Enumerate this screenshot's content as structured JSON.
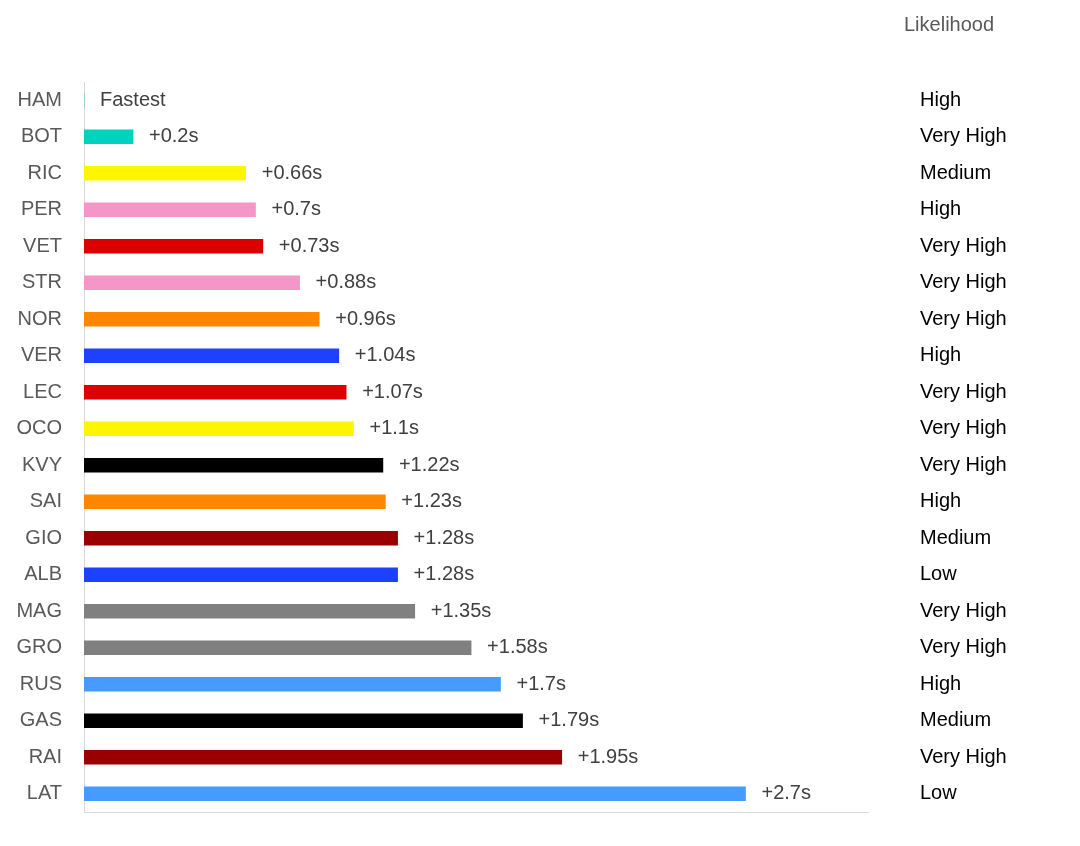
{
  "chart_data": {
    "type": "bar",
    "orientation": "horizontal",
    "categories": [
      "HAM",
      "BOT",
      "RIC",
      "PER",
      "VET",
      "STR",
      "NOR",
      "VER",
      "LEC",
      "OCO",
      "KVY",
      "SAI",
      "GIO",
      "ALB",
      "MAG",
      "GRO",
      "RUS",
      "GAS",
      "RAI",
      "LAT"
    ],
    "values": [
      0,
      0.2,
      0.66,
      0.7,
      0.73,
      0.88,
      0.96,
      1.04,
      1.07,
      1.1,
      1.22,
      1.23,
      1.28,
      1.28,
      1.35,
      1.58,
      1.7,
      1.79,
      1.95,
      2.7
    ],
    "value_labels": [
      "Fastest",
      "+0.2s",
      "+0.66s",
      "+0.7s",
      "+0.73s",
      "+0.88s",
      "+0.96s",
      "+1.04s",
      "+1.07s",
      "+1.1s",
      "+1.22s",
      "+1.23s",
      "+1.28s",
      "+1.28s",
      "+1.35s",
      "+1.58s",
      "+1.7s",
      "+1.79s",
      "+1.95s",
      "+2.7s"
    ],
    "colors": [
      "#00d2be",
      "#00d2be",
      "#fff500",
      "#f596c8",
      "#dc0000",
      "#f596c8",
      "#ff8700",
      "#1e41ff",
      "#dc0000",
      "#fff500",
      "#000000",
      "#ff8700",
      "#9b0000",
      "#1e41ff",
      "#808080",
      "#808080",
      "#469bff",
      "#000000",
      "#9b0000",
      "#469bff"
    ],
    "likelihood_title": "Likelihood",
    "likelihood": [
      "High",
      "Very High",
      "Medium",
      "High",
      "Very High",
      "Very High",
      "Very High",
      "High",
      "Very High",
      "Very High",
      "Very High",
      "High",
      "Medium",
      "Low",
      "Very High",
      "Very High",
      "High",
      "Medium",
      "Very High",
      "Low"
    ],
    "xlim": [
      0,
      3.2
    ],
    "grid": false,
    "data_labels": true,
    "tick_labels": "y"
  }
}
